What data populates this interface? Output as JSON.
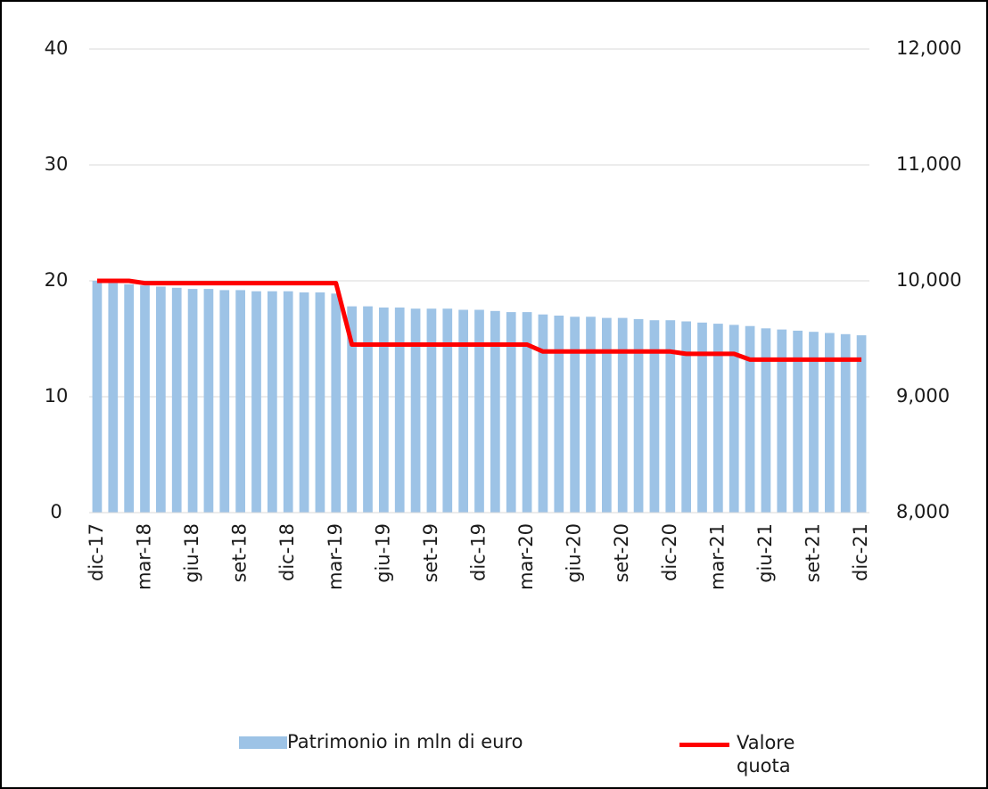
{
  "chart_data": {
    "type": "bar-line",
    "categories": [
      "dic-17",
      null,
      null,
      "mar-18",
      null,
      null,
      "giu-18",
      null,
      null,
      "set-18",
      null,
      null,
      "dic-18",
      null,
      null,
      "mar-19",
      null,
      null,
      "giu-19",
      null,
      null,
      "set-19",
      null,
      null,
      "dic-19",
      null,
      null,
      "mar-20",
      null,
      null,
      "giu-20",
      null,
      null,
      "set-20",
      null,
      null,
      "dic-20",
      null,
      null,
      "mar-21",
      null,
      null,
      "giu-21",
      null,
      null,
      "set-21",
      null,
      null,
      "dic-21"
    ],
    "series": [
      {
        "name": "Patrimonio in mln di euro",
        "color": "#9dc3e6",
        "type": "bar",
        "axis": "y",
        "values": [
          20.0,
          19.8,
          19.7,
          19.6,
          19.5,
          19.4,
          19.3,
          19.3,
          19.2,
          19.2,
          19.1,
          19.1,
          19.1,
          19.0,
          19.0,
          18.9,
          17.8,
          17.8,
          17.7,
          17.7,
          17.6,
          17.6,
          17.6,
          17.5,
          17.5,
          17.4,
          17.3,
          17.3,
          17.1,
          17.0,
          16.9,
          16.9,
          16.8,
          16.8,
          16.7,
          16.6,
          16.6,
          16.5,
          16.4,
          16.3,
          16.2,
          16.1,
          15.9,
          15.8,
          15.7,
          15.6,
          15.5,
          15.4,
          15.3
        ]
      },
      {
        "name": "Valore quota",
        "color": "#ff0000",
        "type": "line",
        "axis": "y2",
        "values": [
          10000,
          10000,
          10000,
          9980,
          9980,
          9980,
          9980,
          9980,
          9980,
          9980,
          9980,
          9980,
          9980,
          9980,
          9980,
          9980,
          9450,
          9450,
          9450,
          9450,
          9450,
          9450,
          9450,
          9450,
          9450,
          9450,
          9450,
          9450,
          9390,
          9390,
          9390,
          9390,
          9390,
          9390,
          9390,
          9390,
          9390,
          9370,
          9370,
          9370,
          9370,
          9320,
          9320,
          9320,
          9320,
          9320,
          9320,
          9320,
          9320
        ]
      }
    ],
    "ylim": [
      0,
      40
    ],
    "yticks": [
      0,
      10,
      20,
      30,
      40
    ],
    "y2lim": [
      8000,
      12000
    ],
    "y2ticks": [
      {
        "value": 8000,
        "label": "8,000"
      },
      {
        "value": 9000,
        "label": "9,000"
      },
      {
        "value": 10000,
        "label": "10,000"
      },
      {
        "value": 11000,
        "label": "11,000"
      },
      {
        "value": 12000,
        "label": "12,000"
      }
    ],
    "grid": true,
    "legend": "bottom"
  }
}
